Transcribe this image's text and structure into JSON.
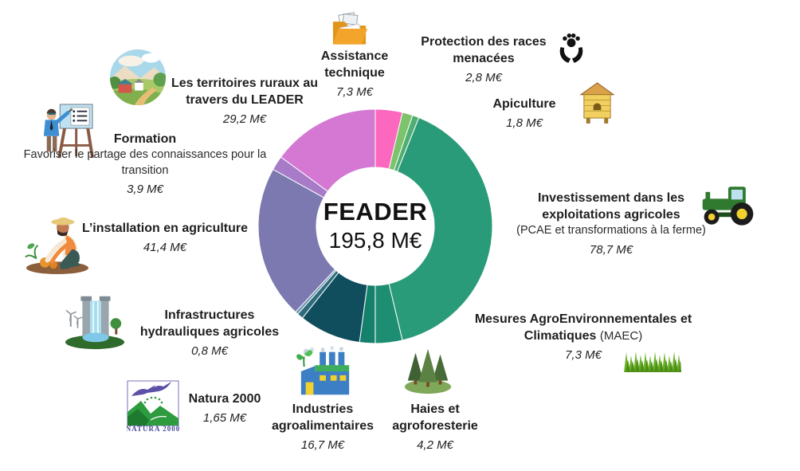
{
  "chart_data": {
    "type": "pie",
    "variant": "donut",
    "title": "FEADER",
    "center": {
      "title": "FEADER",
      "value": "195,8 M€"
    },
    "unit": "M€",
    "total": 195.75,
    "direction": "clockwise",
    "start_angle_deg": 0,
    "legend_position": "labels-around-chart",
    "slices": [
      {
        "label": "Assistance technique",
        "value": 7.3,
        "value_label": "7,3 M€",
        "color": "#FB68BE",
        "icon": "folder-icon"
      },
      {
        "label": "Protection des races menacées",
        "value": 2.8,
        "value_label": "2,8 M€",
        "color": "#7CC36B",
        "icon": "paw-in-hands-icon"
      },
      {
        "label": "Apiculture",
        "value": 1.8,
        "value_label": "1,8 M€",
        "color": "#4FAE72",
        "icon": "beehive-icon"
      },
      {
        "label": "Investissement dans les exploitations agricoles",
        "note": "(PCAE et transformations à la ferme)",
        "value": 78.7,
        "value_label": "78,7 M€",
        "color": "#2A9B78",
        "icon": "tractor-icon"
      },
      {
        "label": "Mesures AgroEnvironnementales et Climatiques",
        "note": "(MAEC)",
        "value": 7.3,
        "value_label": "7,3 M€",
        "color": "#1E8E72",
        "icon": "grass-icon"
      },
      {
        "label": "Haies et agroforesterie",
        "value": 4.2,
        "value_label": "4,2 M€",
        "color": "#15806C",
        "icon": "trees-icon"
      },
      {
        "label": "Industries agroalimentaires",
        "value": 16.7,
        "value_label": "16,7 M€",
        "color": "#104E5E",
        "icon": "factory-icon"
      },
      {
        "label": "Natura 2000",
        "value": 1.65,
        "value_label": "1,65 M€",
        "color": "#2E6B7D",
        "icon": "natura-2000-logo"
      },
      {
        "label": "Infrastructures hydrauliques agricoles",
        "value": 0.8,
        "value_label": "0,8 M€",
        "color": "#6E94AE",
        "icon": "dam-icon"
      },
      {
        "label": "L’installation en agriculture",
        "value": 41.4,
        "value_label": "41,4 M€",
        "color": "#7B79AF",
        "icon": "farmer-icon"
      },
      {
        "label": "Formation",
        "note": "Favoriser le partage des connaissances pour la transition",
        "value": 3.9,
        "value_label": "3,9 M€",
        "color": "#A77BC8",
        "icon": "trainer-easel-icon"
      },
      {
        "label": "Les territoires ruraux au travers du LEADER",
        "value": 29.2,
        "value_label": "29,2 M€",
        "color": "#D478D4",
        "icon": "rural-landscape-icon"
      }
    ]
  },
  "natura_logo_text": "NATURA 2000"
}
